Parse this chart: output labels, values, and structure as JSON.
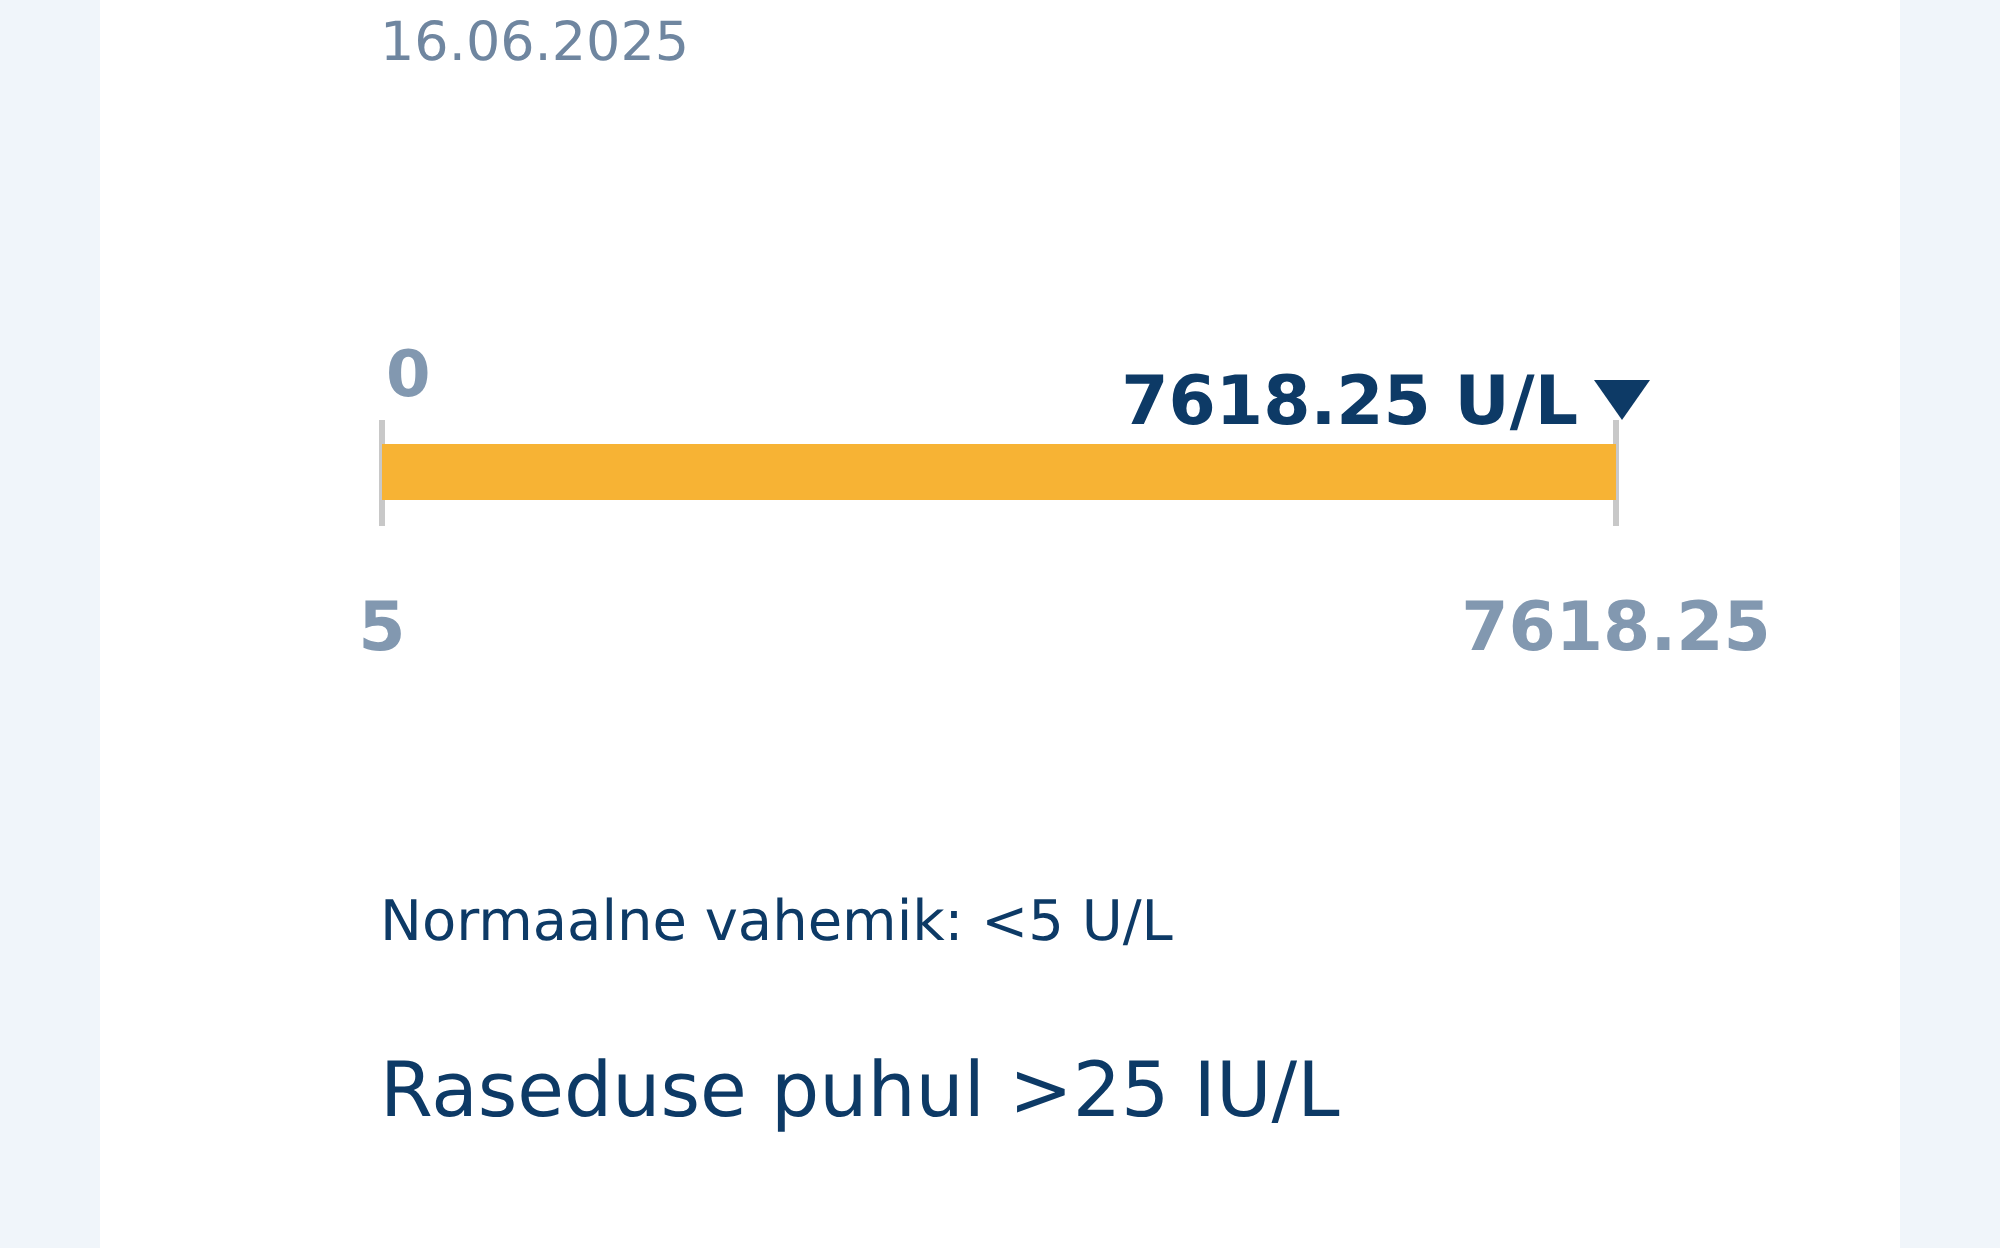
{
  "chart_data": {
    "type": "bar",
    "orientation": "horizontal",
    "title": "16.06.2025",
    "categories": [
      null
    ],
    "series": [
      {
        "color": "#f7b334",
        "values": [
          7618.25
        ],
        "value_labels": [
          "7618.25 U/L"
        ]
      }
    ],
    "xlim": [
      5,
      7618.25
    ],
    "xticks": [
      5,
      7618.25
    ],
    "tick_labels": "x",
    "annotations": [
      "0",
      "Normaalne vahemik: <5 U/L",
      "Raseduse puhul >25 IU/L"
    ]
  }
}
